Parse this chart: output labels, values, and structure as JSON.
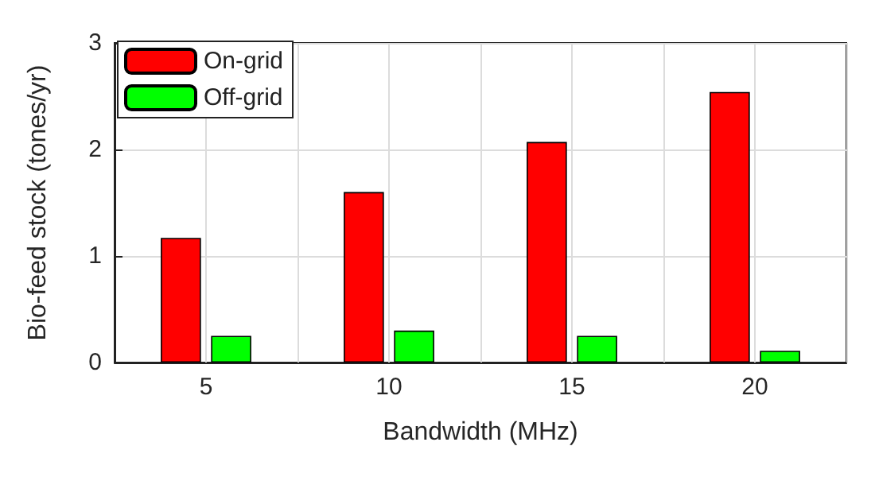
{
  "chart_data": {
    "type": "bar",
    "xlabel": "Bandwidth (MHz)",
    "ylabel": "Bio-feed stock (tones/yr)",
    "categories": [
      "5",
      "10",
      "15",
      "20"
    ],
    "series": [
      {
        "name": "On-grid",
        "color": "#ff0000",
        "values": [
          1.17,
          1.6,
          2.07,
          2.54
        ]
      },
      {
        "name": "Off-grid",
        "color": "#00ff00",
        "values": [
          0.25,
          0.3,
          0.25,
          0.11
        ]
      }
    ],
    "ylim": [
      0,
      3
    ],
    "yticks": [
      0,
      1,
      2,
      3
    ],
    "grid": true,
    "legend": "top left"
  }
}
